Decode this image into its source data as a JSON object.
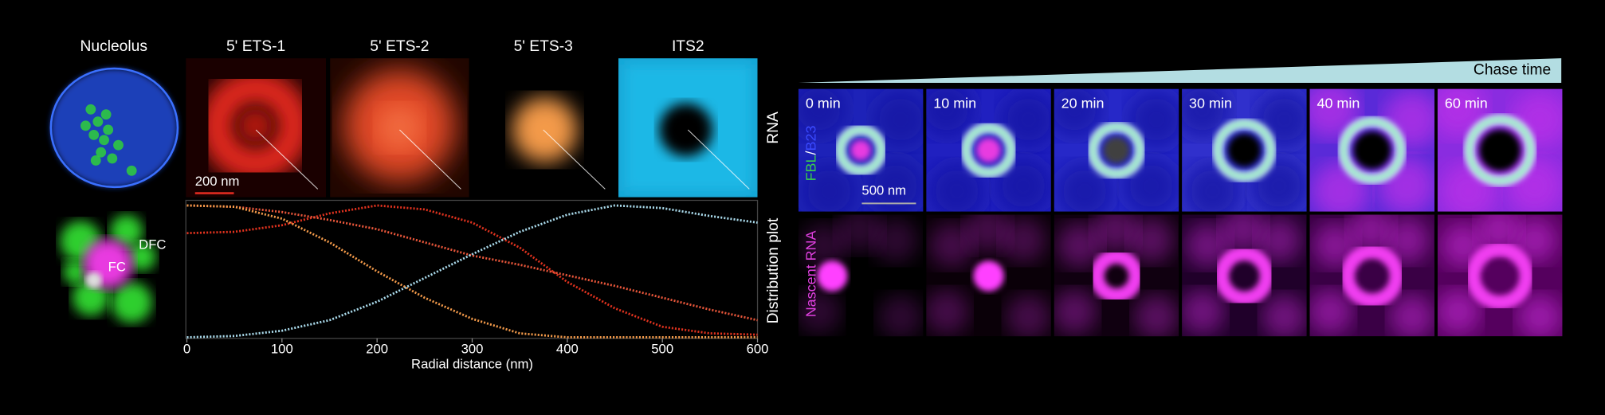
{
  "panel_a": {
    "column_titles": [
      "Nucleolus",
      "5' ETS-1",
      "5' ETS-2",
      "5' ETS-3",
      "ITS2"
    ],
    "scale_bar": "200 nm",
    "row_label_top": "RNA",
    "row_label_bottom": "Distribution plot",
    "compartments": [
      "DFC",
      "FC"
    ]
  },
  "panel_b": {
    "chase_label": "Chase time",
    "times": [
      "0 min",
      "10 min",
      "20 min",
      "30 min",
      "40 min",
      "60 min"
    ],
    "scale_bar": "500 nm",
    "channel_top": [
      "FBL",
      "/",
      "B23"
    ],
    "channel_bottom": "Nascent RNA"
  },
  "chart_data": {
    "type": "line",
    "xlabel": "Radial distance (nm)",
    "x": [
      0,
      50,
      100,
      150,
      200,
      250,
      300,
      350,
      400,
      450,
      500,
      550,
      600
    ],
    "series": [
      {
        "color": "#e0321e",
        "values": [
          0.79,
          0.8,
          0.85,
          0.94,
          1.0,
          0.97,
          0.87,
          0.68,
          0.42,
          0.22,
          0.08,
          0.03,
          0.02
        ]
      },
      {
        "color": "#e8563a",
        "values": [
          1.0,
          0.99,
          0.95,
          0.89,
          0.82,
          0.72,
          0.62,
          0.55,
          0.47,
          0.39,
          0.3,
          0.21,
          0.13
        ]
      },
      {
        "color": "#f39a4a",
        "values": [
          1.0,
          0.99,
          0.9,
          0.72,
          0.5,
          0.3,
          0.14,
          0.03,
          0,
          0,
          0,
          0,
          0
        ]
      },
      {
        "color": "#a9d9ea",
        "values": [
          0,
          0.01,
          0.05,
          0.13,
          0.27,
          0.45,
          0.63,
          0.8,
          0.93,
          1.0,
          0.98,
          0.92,
          0.87
        ]
      }
    ],
    "xlim": [
      0,
      600
    ],
    "xticks": [
      0,
      100,
      200,
      300,
      400,
      500,
      600
    ],
    "ylim": [
      0,
      1
    ]
  }
}
